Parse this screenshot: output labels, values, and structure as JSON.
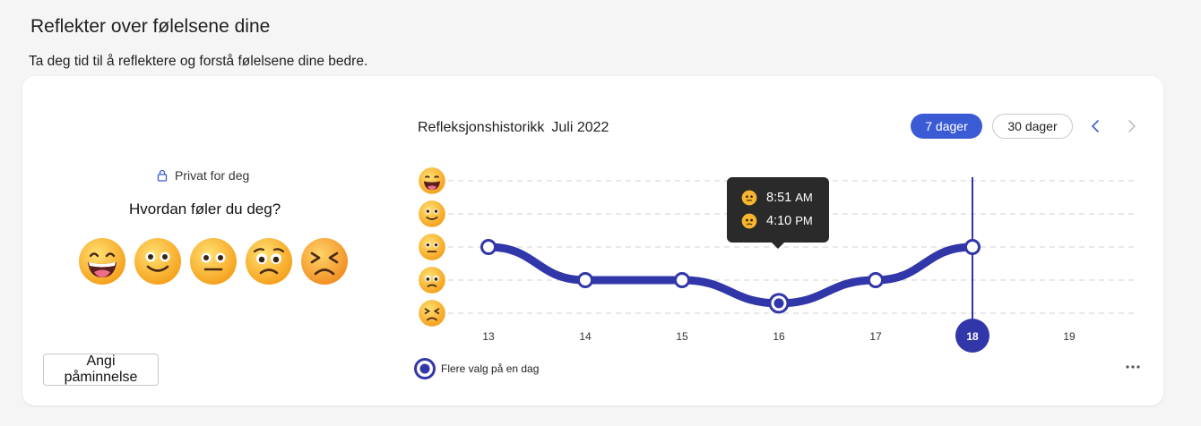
{
  "header": {
    "title": "Reflekter over følelsene dine",
    "subtitle": "Ta deg tid til å reflektere og forstå følelsene dine bedre."
  },
  "checkin": {
    "private_label": "Privat for deg",
    "question": "Hvordan føler du deg?",
    "emojis": [
      "grinning-face-icon",
      "smiling-face-icon",
      "neutral-face-icon",
      "worried-face-icon",
      "tired-face-icon"
    ],
    "reminder_label": "Angi påminnelse"
  },
  "history": {
    "title": "Refleksjonshistorikk",
    "month": "Juli 2022",
    "range_7_label": "7 dager",
    "range_30_label": "30 dager",
    "selected_range": "7 dager",
    "legend_label": "Flere valg på en dag",
    "tooltip": [
      {
        "emoji": "neutral-face-icon",
        "time": "8:51",
        "ampm": "AM"
      },
      {
        "emoji": "worried-face-icon",
        "time": "4:10",
        "ampm": "PM"
      }
    ]
  },
  "chart_data": {
    "type": "line",
    "x": [
      13,
      14,
      15,
      16,
      17,
      18,
      19
    ],
    "y_levels": [
      "grinning",
      "smiling",
      "neutral",
      "worried",
      "tired"
    ],
    "values": [
      2,
      3,
      3,
      3.7,
      3,
      2,
      null
    ],
    "selected_x": 18,
    "multi_choice_x": [
      16
    ],
    "colors": {
      "line": "#3137a8",
      "accent": "#3b5bd4"
    }
  }
}
